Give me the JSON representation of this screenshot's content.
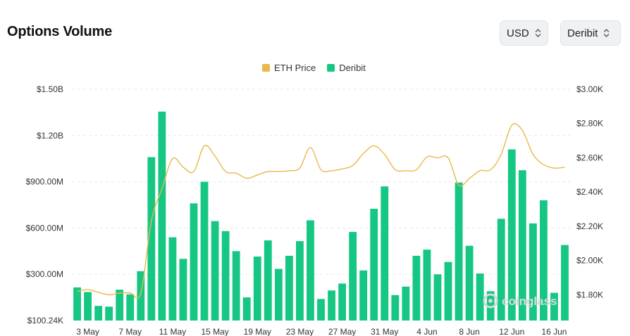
{
  "header": {
    "title": "Options Volume",
    "currency": "USD",
    "exchange": "Deribit"
  },
  "legend": {
    "price_label": "ETH Price",
    "volume_label": "Deribit"
  },
  "colors": {
    "bar": "#16c784",
    "line": "#e9b949",
    "grid": "#e6e8eb"
  },
  "icons": {
    "select_chevron": "chevron-up-down-icon",
    "watermark": "coinglass-logo-icon"
  },
  "watermark_text": "coinglass",
  "chart_data": {
    "type": "bar",
    "title": "Options Volume",
    "x_tick_labels": [
      "3 May",
      "7 May",
      "11 May",
      "15 May",
      "19 May",
      "23 May",
      "27 May",
      "31 May",
      "4 Jun",
      "8 Jun",
      "12 Jun",
      "16 Jun"
    ],
    "x_tick_indices": [
      1,
      5,
      9,
      13,
      17,
      21,
      25,
      29,
      33,
      37,
      41,
      45
    ],
    "y_left_ticks": [
      "$100.24K",
      "$300.00M",
      "$600.00M",
      "$900.00M",
      "$1.20B",
      "$1.50B"
    ],
    "y_left_range": [
      0,
      1500
    ],
    "y_left_unit": "M USD",
    "y_right_ticks": [
      "$1.80K",
      "$2.00K",
      "$2.20K",
      "$2.40K",
      "$2.60K",
      "$2.80K",
      "$3.00K"
    ],
    "y_right_range": [
      1650,
      3000
    ],
    "series": [
      {
        "name": "Deribit",
        "axis": "left",
        "type": "bar",
        "values": [
          215,
          185,
          95,
          90,
          200,
          170,
          320,
          1060,
          1355,
          540,
          400,
          760,
          900,
          645,
          580,
          450,
          150,
          415,
          520,
          335,
          420,
          515,
          650,
          140,
          195,
          240,
          575,
          325,
          725,
          870,
          165,
          220,
          420,
          460,
          300,
          380,
          895,
          485,
          305,
          190,
          660,
          1110,
          975,
          630,
          780,
          180,
          490
        ]
      },
      {
        "name": "ETH Price",
        "axis": "right",
        "type": "line",
        "values": [
          1820,
          1830,
          1815,
          1800,
          1810,
          1812,
          1810,
          2230,
          2420,
          2595,
          2545,
          2520,
          2670,
          2610,
          2520,
          2510,
          2480,
          2500,
          2520,
          2520,
          2525,
          2540,
          2660,
          2530,
          2525,
          2535,
          2555,
          2625,
          2670,
          2620,
          2530,
          2525,
          2530,
          2605,
          2600,
          2600,
          2440,
          2480,
          2525,
          2530,
          2620,
          2790,
          2760,
          2620,
          2560,
          2540,
          2545
        ]
      }
    ]
  }
}
